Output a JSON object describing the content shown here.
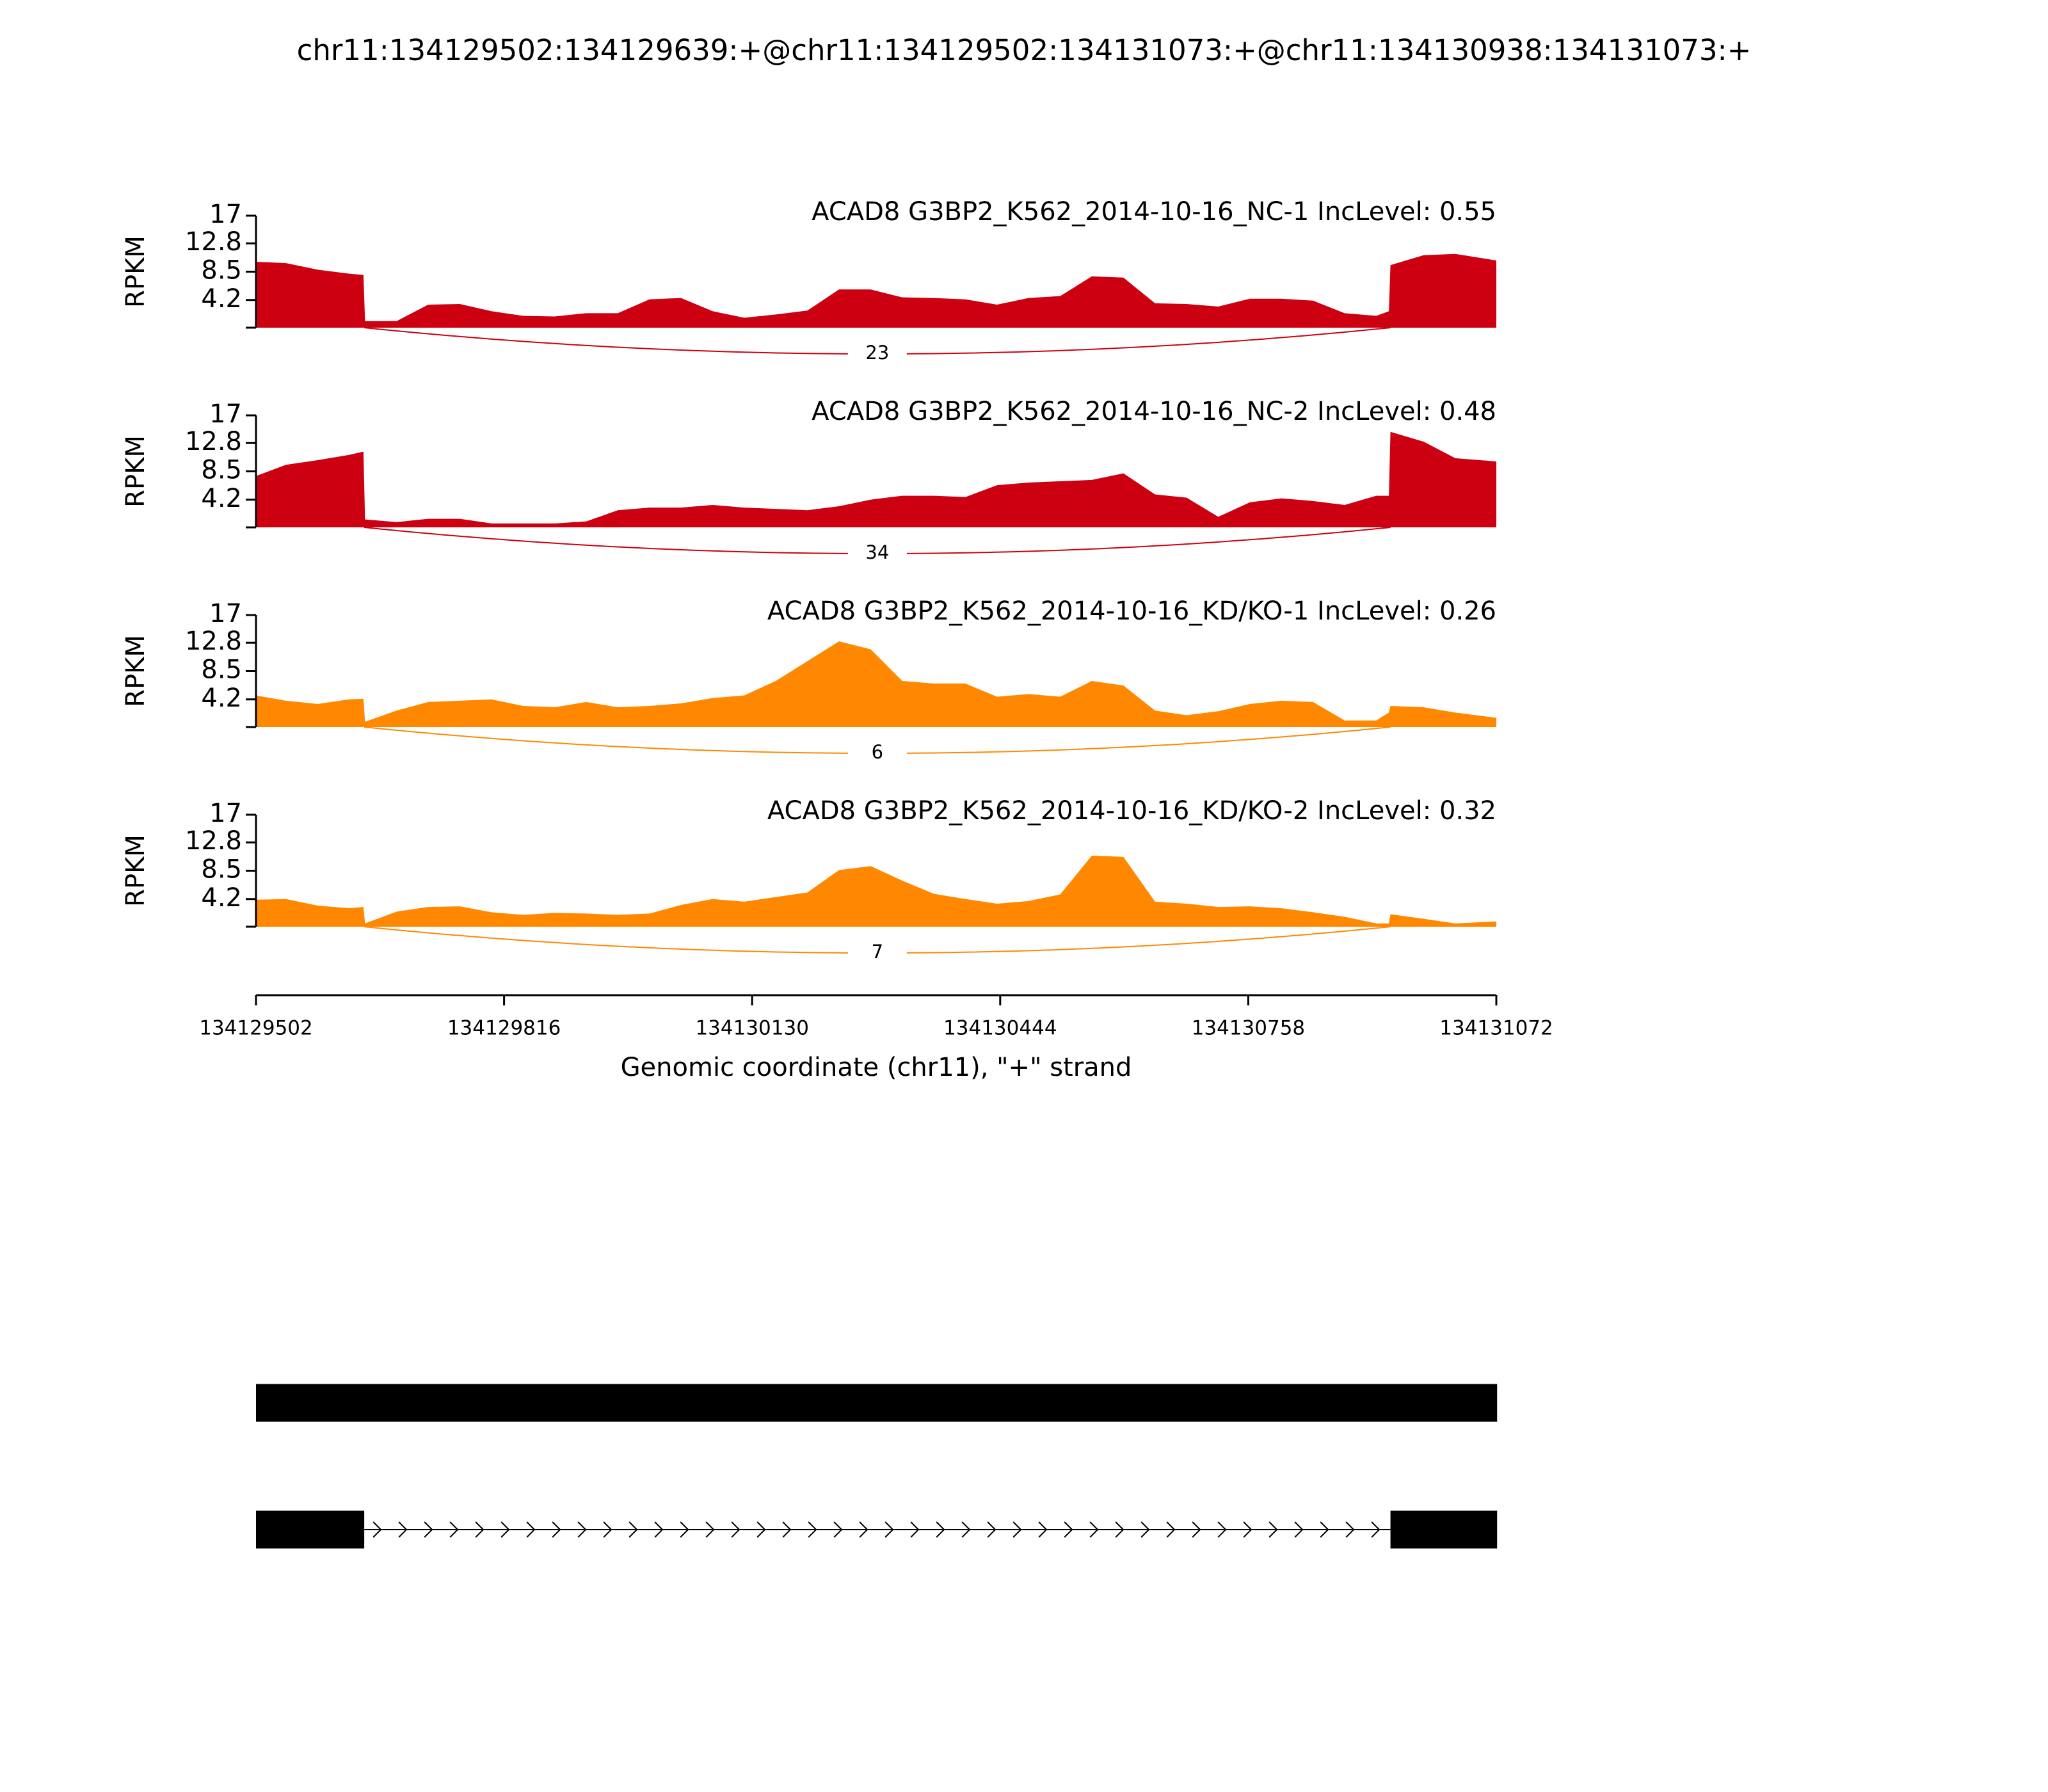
{
  "title": "chr11:134129502:134129639:+@chr11:134129502:134131073:+@chr11:134130938:134131073:+",
  "chart_data": [
    {
      "type": "area",
      "title": "ACAD8 G3BP2_K562_2014-10-16_NC-1 IncLevel: 0.55",
      "ylabel": "RPKM",
      "color": "#cc0011",
      "xlim": [
        134129502,
        134131072
      ],
      "ylim": [
        0,
        17
      ],
      "yticks": [
        4.2,
        8.5,
        12.8,
        17
      ],
      "x": [
        134129502,
        134129540,
        134129580,
        134129620,
        134129638,
        134129640,
        134129680,
        134129720,
        134129760,
        134129800,
        134129840,
        134129880,
        134129920,
        134129960,
        134130000,
        134130040,
        134130080,
        134130120,
        134130160,
        134130200,
        134130240,
        134130280,
        134130320,
        134130360,
        134130400,
        134130440,
        134130480,
        134130520,
        134130560,
        134130600,
        134130640,
        134130680,
        134130720,
        134130760,
        134130800,
        134130840,
        134130880,
        134130920,
        134130936,
        134130938,
        134130980,
        134131020,
        134131072
      ],
      "values": [
        10,
        9.8,
        8.8,
        8.2,
        8,
        1,
        1,
        3.5,
        3.6,
        2.5,
        1.8,
        1.7,
        2.2,
        2.2,
        4.3,
        4.5,
        2.5,
        1.5,
        2,
        2.6,
        5.8,
        5.8,
        4.6,
        4.5,
        4.3,
        3.5,
        4.5,
        4.8,
        7.8,
        7.6,
        3.7,
        3.6,
        3.2,
        4.4,
        4.4,
        4.1,
        2.2,
        1.8,
        2.5,
        9.5,
        11,
        11.2,
        10.2
      ],
      "junctions": [
        {
          "start": 134129639,
          "end": 134130938,
          "value": 23
        }
      ]
    },
    {
      "type": "area",
      "title": "ACAD8 G3BP2_K562_2014-10-16_NC-2 IncLevel: 0.48",
      "ylabel": "RPKM",
      "color": "#cc0011",
      "xlim": [
        134129502,
        134131072
      ],
      "ylim": [
        0,
        17
      ],
      "yticks": [
        4.2,
        8.5,
        12.8,
        17
      ],
      "x": [
        134129502,
        134129540,
        134129580,
        134129620,
        134129638,
        134129640,
        134129680,
        134129720,
        134129760,
        134129800,
        134129840,
        134129880,
        134129920,
        134129960,
        134130000,
        134130040,
        134130080,
        134130120,
        134130160,
        134130200,
        134130240,
        134130280,
        134130320,
        134130360,
        134130400,
        134130440,
        134130480,
        134130520,
        134130560,
        134130600,
        134130640,
        134130680,
        134130720,
        134130760,
        134130800,
        134130840,
        134130880,
        134130920,
        134130936,
        134130938,
        134130980,
        134131020,
        134131072
      ],
      "values": [
        7.8,
        9.5,
        10.2,
        11,
        11.5,
        1.2,
        0.8,
        1.3,
        1.3,
        0.6,
        0.6,
        0.6,
        0.9,
        2.6,
        3,
        3,
        3.4,
        3,
        2.8,
        2.6,
        3.2,
        4.2,
        4.8,
        4.8,
        4.6,
        6.4,
        6.8,
        7,
        7.2,
        8.2,
        5,
        4.5,
        1.6,
        3.8,
        4.4,
        4,
        3.4,
        4.8,
        4.8,
        14.5,
        13,
        10.5,
        10
      ],
      "junctions": [
        {
          "start": 134129639,
          "end": 134130938,
          "value": 34
        }
      ]
    },
    {
      "type": "area",
      "title": "ACAD8 G3BP2_K562_2014-10-16_KD/KO-1 IncLevel: 0.26",
      "ylabel": "RPKM",
      "color": "#ff8800",
      "xlim": [
        134129502,
        134131072
      ],
      "ylim": [
        0,
        17
      ],
      "yticks": [
        4.2,
        8.5,
        12.8,
        17
      ],
      "x": [
        134129502,
        134129540,
        134129580,
        134129620,
        134129638,
        134129640,
        134129680,
        134129720,
        134129760,
        134129800,
        134129840,
        134129880,
        134129920,
        134129960,
        134130000,
        134130040,
        134130080,
        134130120,
        134130160,
        134130200,
        134130240,
        134130280,
        134130320,
        134130360,
        134130400,
        134130440,
        134130480,
        134130520,
        134130560,
        134130600,
        134130640,
        134130680,
        134130720,
        134130760,
        134130800,
        134130840,
        134130880,
        134130920,
        134130936,
        134130938,
        134130980,
        134131020,
        134131072
      ],
      "values": [
        4.8,
        4,
        3.5,
        4.2,
        4.3,
        0.8,
        2.5,
        3.8,
        4,
        4.2,
        3.2,
        3,
        3.8,
        3,
        3.2,
        3.6,
        4.4,
        4.8,
        7,
        10,
        13,
        11.8,
        7,
        6.6,
        6.6,
        4.6,
        5,
        4.6,
        7,
        6.3,
        2.5,
        1.8,
        2.4,
        3.5,
        4,
        3.8,
        1,
        1,
        2.2,
        3.2,
        3,
        2.2,
        1.4
      ],
      "junctions": [
        {
          "start": 134129639,
          "end": 134130938,
          "value": 6
        }
      ]
    },
    {
      "type": "area",
      "title": "ACAD8 G3BP2_K562_2014-10-16_KD/KO-2 IncLevel: 0.32",
      "ylabel": "RPKM",
      "color": "#ff8800",
      "xlim": [
        134129502,
        134131072
      ],
      "ylim": [
        0,
        17
      ],
      "yticks": [
        4.2,
        8.5,
        12.8,
        17
      ],
      "xticks": [
        134129502,
        134129816,
        134130130,
        134130444,
        134130758,
        134131072
      ],
      "xlabel": "Genomic coordinate (chr11), \"+\" strand",
      "x": [
        134129502,
        134129540,
        134129580,
        134129620,
        134129638,
        134129640,
        134129680,
        134129720,
        134129760,
        134129800,
        134129840,
        134129880,
        134129920,
        134129960,
        134130000,
        134130040,
        134130080,
        134130120,
        134130160,
        134130200,
        134130240,
        134130280,
        134130320,
        134130360,
        134130400,
        134130440,
        134130480,
        134130520,
        134130560,
        134130600,
        134130640,
        134130680,
        134130720,
        134130760,
        134130800,
        134130840,
        134130880,
        134130920,
        134130936,
        134130938,
        134130980,
        134131020,
        134131072
      ],
      "values": [
        4.1,
        4.2,
        3.2,
        2.8,
        3,
        0.5,
        2.3,
        3,
        3.1,
        2.2,
        1.8,
        2.1,
        2,
        1.8,
        2,
        3.3,
        4.2,
        3.8,
        4.5,
        5.2,
        8.6,
        9.2,
        7,
        5,
        4.2,
        3.5,
        3.9,
        4.9,
        10.8,
        10.6,
        3.8,
        3.5,
        3,
        3.1,
        2.8,
        2.2,
        1.5,
        0.5,
        0.5,
        1.9,
        1.2,
        0.5,
        0.8
      ],
      "junctions": [
        {
          "start": 134129639,
          "end": 134130938,
          "value": 7
        }
      ]
    },
    {
      "type": "gene_model",
      "xlim": [
        134129502,
        134131072
      ],
      "transcripts": [
        {
          "exons": [
            [
              134129502,
              134131073
            ]
          ]
        },
        {
          "exons": [
            [
              134129502,
              134129639
            ],
            [
              134130938,
              134131073
            ]
          ]
        }
      ]
    }
  ]
}
